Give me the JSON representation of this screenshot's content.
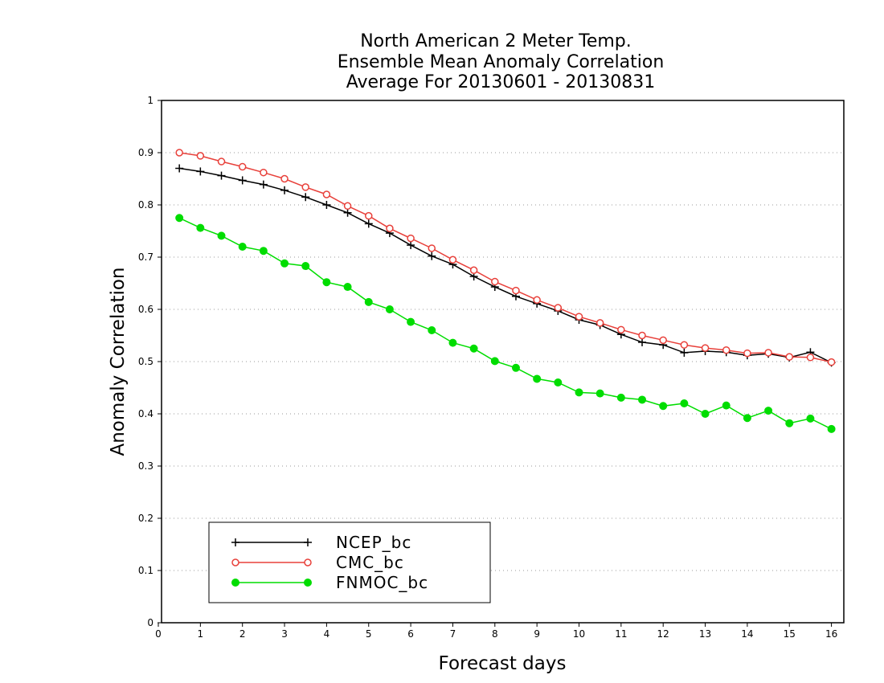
{
  "chart_data": {
    "type": "line",
    "title": [
      "North American 2 Meter Temp.",
      "Ensemble Mean Anomaly Correlation",
      "Average For 20130601 - 20130831"
    ],
    "xlabel": "Forecast days",
    "ylabel": "Anomaly Correlation",
    "xlim": [
      0,
      16.25
    ],
    "ylim": [
      0,
      1
    ],
    "xticks": [
      "0",
      "1",
      "2",
      "3",
      "4",
      "5",
      "6",
      "7",
      "8",
      "9",
      "10",
      "11",
      "12",
      "13",
      "14",
      "15",
      "16"
    ],
    "yticks": [
      "0",
      "0.1",
      "0.2",
      "0.3",
      "0.4",
      "0.5",
      "0.6",
      "0.7",
      "0.8",
      "0.9",
      "1"
    ],
    "grid": true,
    "legend_position": "bottom-left",
    "x": [
      0.5,
      1,
      1.5,
      2,
      2.5,
      3,
      3.5,
      4,
      4.5,
      5,
      5.5,
      6,
      6.5,
      7,
      7.5,
      8,
      8.5,
      9,
      9.5,
      10,
      10.5,
      11,
      11.5,
      12,
      12.5,
      13,
      13.5,
      14,
      14.5,
      15,
      15.5,
      16
    ],
    "series": [
      {
        "name": "NCEP_bc",
        "color": "#000000",
        "marker": "plus",
        "values": [
          0.87,
          0.864,
          0.856,
          0.847,
          0.839,
          0.828,
          0.815,
          0.8,
          0.785,
          0.764,
          0.746,
          0.723,
          0.702,
          0.686,
          0.663,
          0.643,
          0.625,
          0.611,
          0.597,
          0.58,
          0.57,
          0.552,
          0.537,
          0.532,
          0.517,
          0.52,
          0.518,
          0.512,
          0.515,
          0.508,
          0.518,
          0.498
        ]
      },
      {
        "name": "CMC_bc",
        "color": "#e8403a",
        "marker": "open-circle",
        "values": [
          0.9,
          0.894,
          0.883,
          0.873,
          0.862,
          0.85,
          0.834,
          0.82,
          0.798,
          0.779,
          0.755,
          0.736,
          0.717,
          0.695,
          0.675,
          0.653,
          0.636,
          0.618,
          0.603,
          0.586,
          0.574,
          0.561,
          0.55,
          0.541,
          0.532,
          0.526,
          0.522,
          0.516,
          0.517,
          0.509,
          0.508,
          0.499
        ]
      },
      {
        "name": "FNMOC_bc",
        "color": "#00dd00",
        "marker": "filled-circle",
        "values": [
          0.775,
          0.756,
          0.741,
          0.72,
          0.712,
          0.688,
          0.683,
          0.652,
          0.643,
          0.614,
          0.6,
          0.576,
          0.56,
          0.536,
          0.525,
          0.501,
          0.488,
          0.467,
          0.46,
          0.441,
          0.439,
          0.431,
          0.427,
          0.415,
          0.42,
          0.4,
          0.416,
          0.392,
          0.406,
          0.382,
          0.391,
          0.371
        ]
      }
    ]
  }
}
